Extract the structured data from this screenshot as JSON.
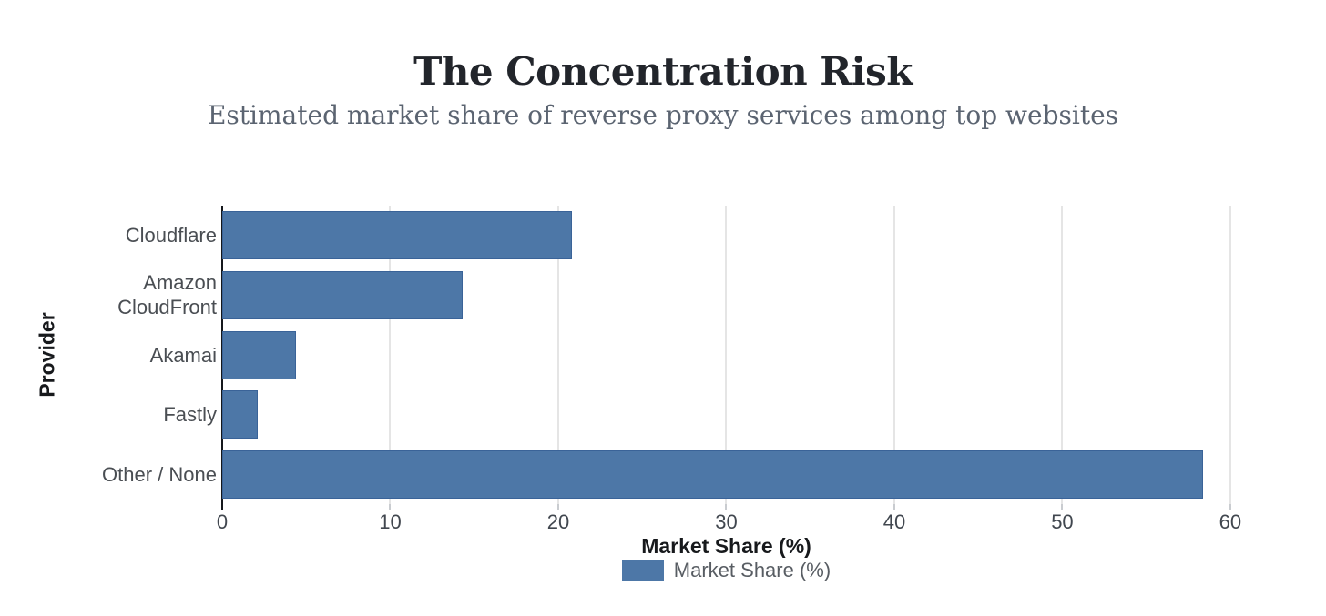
{
  "chart_data": {
    "type": "bar",
    "orientation": "horizontal",
    "title": "The Concentration Risk",
    "subtitle": "Estimated market share of reverse proxy services among top websites",
    "xlabel": "Market Share (%)",
    "ylabel": "Provider",
    "categories": [
      "Cloudflare",
      "Amazon CloudFront",
      "Akamai",
      "Fastly",
      "Other / None"
    ],
    "values": [
      20.8,
      14.3,
      4.4,
      2.1,
      58.4
    ],
    "xlim": [
      0,
      60.6
    ],
    "xticks": [
      0,
      10,
      20,
      30,
      40,
      50,
      60
    ],
    "grid": "vertical-only",
    "legend": {
      "position": "bottom-center",
      "entries": [
        {
          "label": "Market Share (%)",
          "color": "#4d77a7"
        }
      ]
    },
    "colors": {
      "bar_fill": "#4d77a7",
      "bar_border": "#3a6398",
      "gridline": "#e5e5e5",
      "tick_stub": "#c9ccd0",
      "axis_line": "#15181c",
      "title_text": "#22252b",
      "subtitle_text": "#5b6471",
      "category_text": "#4a4e53",
      "tick_text": "#41474f",
      "legend_text": "#585d63"
    }
  }
}
